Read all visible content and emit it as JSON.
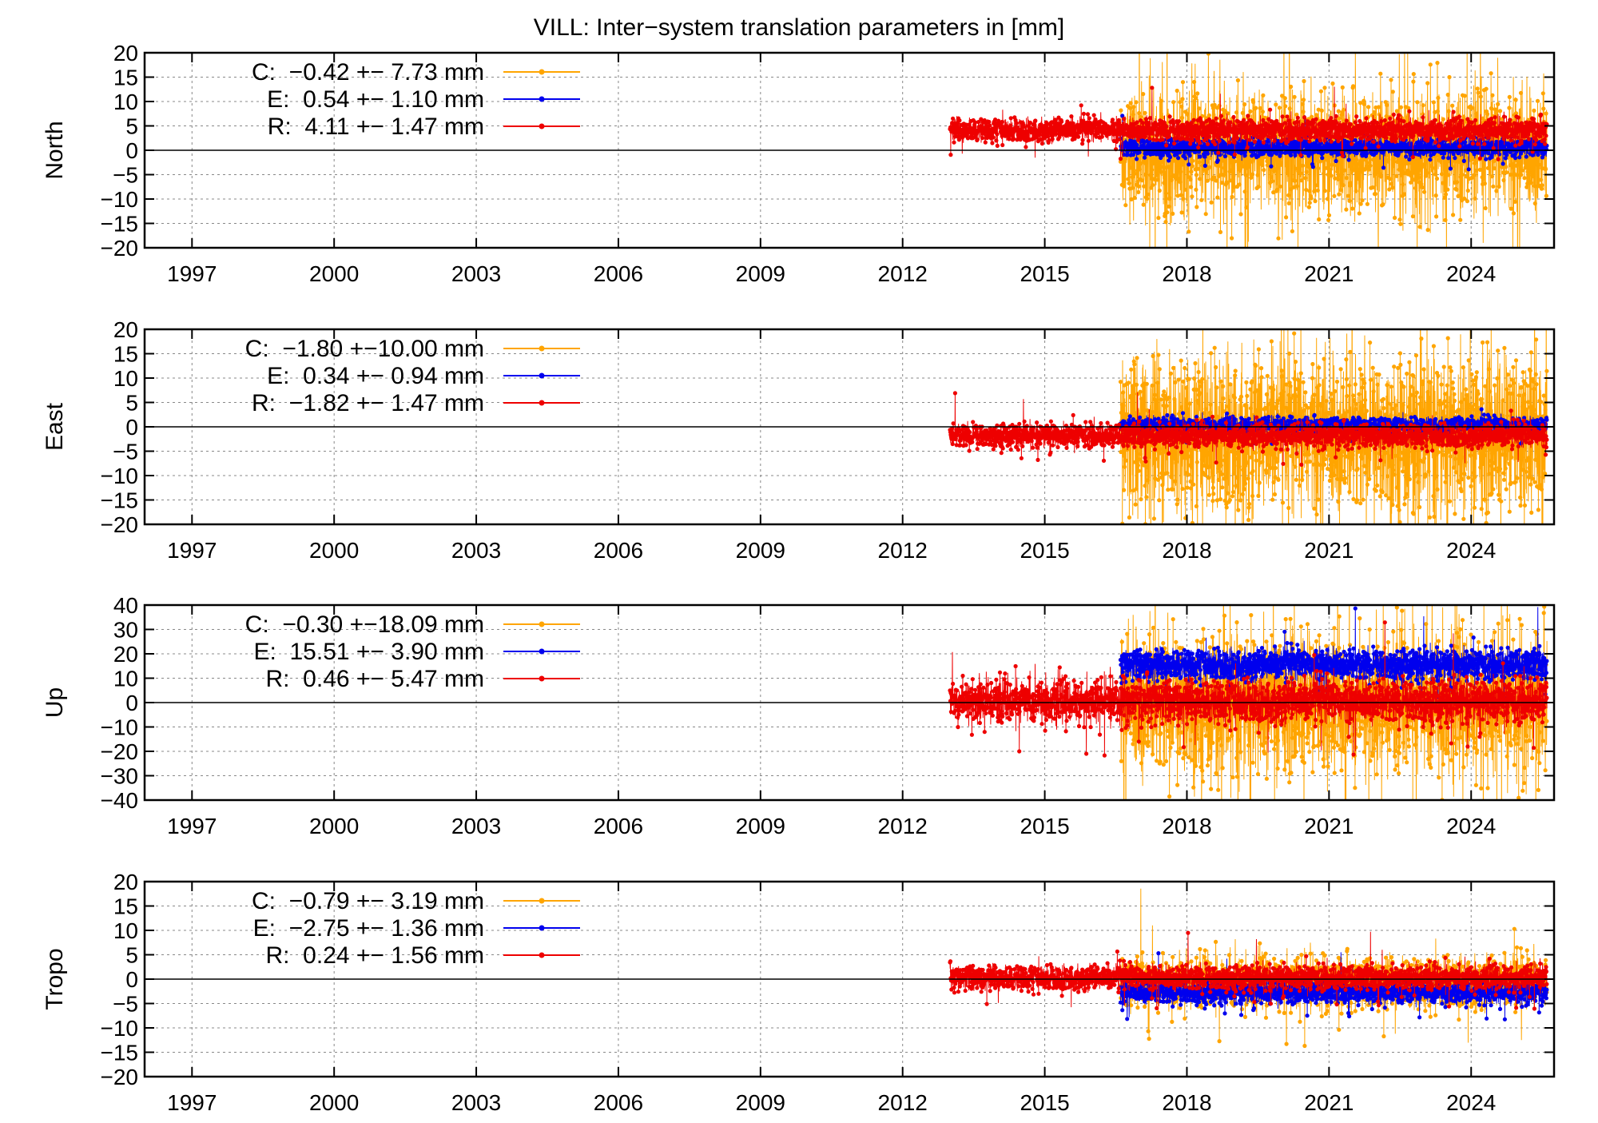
{
  "title": "VILL: Inter−system translation parameters in [mm]",
  "colors": {
    "C": "#ffa500",
    "E": "#0000ee",
    "R": "#ee0000"
  },
  "chart_data": [
    {
      "type": "scatter",
      "ylabel": "North",
      "ylim": [
        -20,
        20
      ],
      "yticks": [
        "20",
        "15",
        "10",
        "5",
        "0",
        "−5",
        "−10",
        "−15",
        "−20"
      ],
      "xticks": [
        "1997",
        "2000",
        "2003",
        "2006",
        "2009",
        "2012",
        "2015",
        "2018",
        "2021",
        "2024"
      ],
      "xlim": [
        1996,
        2025.75
      ],
      "grid": true,
      "legend_position": "top-left",
      "series": [
        {
          "key": "C",
          "label": "C:  −0.42 +− 7.73 mm",
          "mean": -0.42,
          "sd": 7.73,
          "start": 2016.6,
          "end": 2025.6
        },
        {
          "key": "E",
          "label": "E:  0.54 +− 1.10 mm",
          "mean": 0.54,
          "sd": 1.1,
          "start": 2016.6,
          "end": 2025.6
        },
        {
          "key": "R",
          "label": "R:  4.11 +− 1.47 mm",
          "mean": 4.11,
          "sd": 1.47,
          "start": 2013.0,
          "end": 2025.6
        }
      ]
    },
    {
      "type": "scatter",
      "ylabel": "East",
      "ylim": [
        -20,
        20
      ],
      "yticks": [
        "20",
        "15",
        "10",
        "5",
        "0",
        "−5",
        "−10",
        "−15",
        "−20"
      ],
      "xticks": [
        "1997",
        "2000",
        "2003",
        "2006",
        "2009",
        "2012",
        "2015",
        "2018",
        "2021",
        "2024"
      ],
      "xlim": [
        1996,
        2025.75
      ],
      "grid": true,
      "legend_position": "top-left",
      "series": [
        {
          "key": "C",
          "label": "C:  −1.80 +−10.00 mm",
          "mean": -1.8,
          "sd": 10.0,
          "start": 2016.6,
          "end": 2025.6
        },
        {
          "key": "E",
          "label": "E:  0.34 +− 0.94 mm",
          "mean": 0.34,
          "sd": 0.94,
          "start": 2016.6,
          "end": 2025.6
        },
        {
          "key": "R",
          "label": "R:  −1.82 +− 1.47 mm",
          "mean": -1.82,
          "sd": 1.47,
          "start": 2013.0,
          "end": 2025.6
        }
      ]
    },
    {
      "type": "scatter",
      "ylabel": "Up",
      "ylim": [
        -40,
        40
      ],
      "yticks": [
        "40",
        "30",
        "20",
        "10",
        "0",
        "−10",
        "−20",
        "−30",
        "−40"
      ],
      "xticks": [
        "1997",
        "2000",
        "2003",
        "2006",
        "2009",
        "2012",
        "2015",
        "2018",
        "2021",
        "2024"
      ],
      "xlim": [
        1996,
        2025.75
      ],
      "grid": true,
      "legend_position": "top-left",
      "series": [
        {
          "key": "C",
          "label": "C:  −0.30 +−18.09 mm",
          "mean": -0.3,
          "sd": 18.09,
          "start": 2016.6,
          "end": 2025.6
        },
        {
          "key": "E",
          "label": "E:  15.51 +− 3.90 mm",
          "mean": 15.51,
          "sd": 3.9,
          "start": 2016.6,
          "end": 2025.6
        },
        {
          "key": "R",
          "label": "R:  0.46 +− 5.47 mm",
          "mean": 0.46,
          "sd": 5.47,
          "start": 2013.0,
          "end": 2025.6
        }
      ]
    },
    {
      "type": "scatter",
      "ylabel": "Tropo",
      "ylim": [
        -20,
        20
      ],
      "yticks": [
        "20",
        "15",
        "10",
        "5",
        "0",
        "−5",
        "−10",
        "−15",
        "−20"
      ],
      "xticks": [
        "1997",
        "2000",
        "2003",
        "2006",
        "2009",
        "2012",
        "2015",
        "2018",
        "2021",
        "2024"
      ],
      "xlim": [
        1996,
        2025.75
      ],
      "grid": true,
      "legend_position": "top-left",
      "series": [
        {
          "key": "C",
          "label": "C:  −0.79 +− 3.19 mm",
          "mean": -0.79,
          "sd": 3.19,
          "start": 2016.6,
          "end": 2025.6
        },
        {
          "key": "E",
          "label": "E:  −2.75 +− 1.36 mm",
          "mean": -2.75,
          "sd": 1.36,
          "start": 2016.6,
          "end": 2025.6
        },
        {
          "key": "R",
          "label": "R:  0.24 +− 1.56 mm",
          "mean": 0.24,
          "sd": 1.56,
          "start": 2013.0,
          "end": 2025.6
        }
      ]
    }
  ]
}
